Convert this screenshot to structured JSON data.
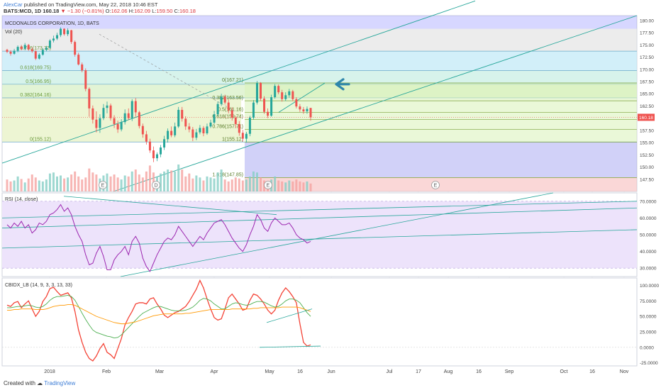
{
  "header": {
    "author": "AlexCar",
    "published_text": "published on TradingView.com, May 22, 2018 10:46 EST",
    "symbol": "BATS:MCD, 1D",
    "last": "160.18",
    "change": "−1.30 (−0.81%)",
    "o_label": "O:",
    "o_val": "162.06",
    "h_label": "H:",
    "h_val": "162.09",
    "l_label": "L:",
    "l_val": "159.50",
    "c_label": "C:",
    "c_val": "160.18"
  },
  "footer": {
    "created_with": "Created with",
    "brand": "TradingView"
  },
  "colors": {
    "up": "#26a69a",
    "down": "#ef5350",
    "rsi": "#9c27b0",
    "cb_red": "#f44336",
    "cb_green": "#4caf50",
    "cb_orange": "#ff9800",
    "trend": "#26a69a",
    "arrow": "#2e86ab"
  },
  "chart_data": [
    {
      "type": "candlestick",
      "title": "MCDONALDS CORPORATION, 1D, BATS",
      "volume_label": "Vol (20)",
      "last_price_label": "160.18",
      "ylim": [
        145,
        181
      ],
      "y_ticks": [
        "180.00",
        "177.50",
        "175.00",
        "172.50",
        "170.00",
        "167.50",
        "165.00",
        "162.50",
        "160.00",
        "157.50",
        "155.00",
        "152.50",
        "150.00",
        "147.50"
      ],
      "fib_top": [
        {
          "label": "0.786(173.72)",
          "level": 173.72
        },
        {
          "label": "0.618(169.75)",
          "level": 169.75
        },
        {
          "label": "0.5(166.95)",
          "level": 166.95
        },
        {
          "label": "0.382(164.16)",
          "level": 164.16
        },
        {
          "label": "0(155.12)",
          "level": 155.12
        }
      ],
      "fib_second": [
        {
          "label": "0(167.21)",
          "level": 167.21
        },
        {
          "label": "0.382(163.56)",
          "level": 163.56
        },
        {
          "label": "0.5(161.16)",
          "level": 161.16
        },
        {
          "label": "0.618(159.74)",
          "level": 159.74
        },
        {
          "label": "0.786(157.71)",
          "level": 157.71
        },
        {
          "label": "1(155.12)",
          "level": 155.12
        },
        {
          "label": "1.618(147.85)",
          "level": 147.85
        }
      ],
      "candles": [
        [
          174.0,
          173.6,
          174.2,
          173.3
        ],
        [
          173.6,
          173.2,
          173.9,
          172.8
        ],
        [
          173.2,
          173.8,
          174.2,
          173.0
        ],
        [
          173.8,
          174.6,
          174.9,
          173.5
        ],
        [
          174.6,
          174.2,
          175.0,
          173.9
        ],
        [
          174.2,
          175.0,
          175.4,
          173.9
        ],
        [
          175.0,
          174.1,
          175.2,
          173.8
        ],
        [
          174.1,
          173.7,
          174.5,
          173.4
        ],
        [
          173.7,
          172.2,
          173.9,
          171.9
        ],
        [
          172.2,
          173.0,
          173.3,
          172.0
        ],
        [
          173.0,
          174.0,
          174.3,
          172.8
        ],
        [
          174.0,
          174.4,
          174.8,
          173.7
        ],
        [
          174.4,
          175.9,
          176.2,
          174.2
        ],
        [
          175.9,
          176.3,
          176.9,
          175.5
        ],
        [
          176.3,
          177.0,
          177.5,
          176.0
        ],
        [
          177.0,
          178.3,
          178.6,
          176.6
        ],
        [
          178.3,
          177.2,
          178.4,
          176.9
        ],
        [
          177.2,
          178.0,
          178.4,
          176.8
        ],
        [
          178.0,
          175.6,
          178.1,
          175.2
        ],
        [
          175.6,
          173.0,
          175.9,
          172.6
        ],
        [
          173.0,
          171.0,
          173.4,
          170.8
        ],
        [
          171.0,
          169.8,
          171.4,
          169.4
        ],
        [
          169.8,
          166.0,
          170.2,
          165.5
        ],
        [
          166.0,
          162.0,
          166.3,
          160.3
        ],
        [
          162.0,
          159.7,
          162.6,
          158.9
        ],
        [
          159.7,
          158.0,
          161.4,
          157.1
        ],
        [
          158.0,
          160.0,
          160.8,
          157.0
        ],
        [
          160.0,
          162.1,
          162.9,
          159.6
        ],
        [
          162.1,
          162.6,
          163.4,
          161.0
        ],
        [
          162.6,
          160.0,
          163.0,
          159.5
        ],
        [
          160.0,
          158.8,
          160.6,
          158.0
        ],
        [
          158.8,
          157.7,
          159.5,
          157.0
        ],
        [
          157.7,
          159.2,
          159.8,
          157.3
        ],
        [
          159.2,
          161.0,
          161.8,
          158.7
        ],
        [
          161.0,
          160.0,
          162.0,
          159.6
        ],
        [
          160.0,
          163.5,
          163.9,
          159.4
        ],
        [
          163.5,
          161.2,
          164.1,
          160.3
        ],
        [
          161.2,
          158.4,
          161.5,
          157.9
        ],
        [
          158.4,
          156.7,
          158.9,
          156.0
        ],
        [
          156.7,
          155.2,
          157.4,
          154.6
        ],
        [
          155.2,
          153.4,
          155.8,
          152.9
        ],
        [
          153.4,
          151.8,
          154.2,
          151.0
        ],
        [
          151.8,
          152.6,
          153.0,
          151.2
        ],
        [
          152.6,
          154.0,
          154.5,
          152.0
        ],
        [
          154.0,
          155.7,
          156.4,
          153.5
        ],
        [
          155.7,
          157.4,
          157.9,
          155.0
        ],
        [
          157.4,
          156.5,
          158.3,
          156.1
        ],
        [
          156.5,
          158.3,
          159.1,
          156.1
        ],
        [
          158.3,
          161.7,
          162.3,
          158.0
        ],
        [
          161.7,
          159.9,
          162.3,
          159.3
        ],
        [
          159.9,
          158.3,
          160.4,
          157.6
        ],
        [
          158.3,
          157.7,
          159.0,
          157.1
        ],
        [
          157.7,
          156.0,
          158.2,
          155.3
        ],
        [
          156.0,
          157.1,
          157.8,
          155.5
        ],
        [
          157.1,
          158.0,
          158.6,
          156.7
        ],
        [
          158.0,
          156.9,
          158.4,
          156.3
        ],
        [
          156.9,
          158.3,
          158.9,
          156.6
        ],
        [
          158.3,
          159.1,
          159.7,
          158.0
        ],
        [
          159.1,
          160.8,
          161.5,
          158.8
        ],
        [
          160.8,
          162.9,
          163.4,
          160.4
        ],
        [
          162.9,
          164.4,
          165.0,
          162.5
        ],
        [
          164.4,
          163.2,
          164.8,
          162.8
        ],
        [
          163.2,
          161.6,
          163.8,
          161.0
        ],
        [
          161.6,
          160.1,
          162.2,
          159.5
        ],
        [
          160.1,
          158.8,
          160.5,
          158.0
        ],
        [
          158.8,
          157.0,
          159.4,
          156.4
        ],
        [
          157.0,
          155.8,
          157.6,
          155.2
        ],
        [
          155.8,
          156.8,
          157.2,
          155.0
        ],
        [
          156.8,
          160.1,
          160.5,
          156.3
        ],
        [
          160.1,
          163.2,
          163.7,
          159.7
        ],
        [
          163.2,
          167.2,
          167.6,
          162.8
        ],
        [
          167.2,
          164.0,
          167.4,
          163.6
        ],
        [
          164.0,
          161.3,
          164.5,
          160.9
        ],
        [
          161.3,
          160.5,
          162.0,
          160.0
        ],
        [
          160.5,
          164.3,
          164.8,
          160.3
        ],
        [
          164.3,
          166.6,
          167.0,
          164.0
        ],
        [
          166.6,
          165.3,
          166.9,
          164.9
        ],
        [
          165.3,
          163.9,
          165.8,
          163.4
        ],
        [
          163.9,
          164.7,
          165.3,
          163.5
        ],
        [
          164.7,
          165.5,
          166.0,
          164.2
        ],
        [
          165.5,
          163.9,
          165.8,
          163.5
        ],
        [
          163.9,
          162.4,
          164.3,
          162.0
        ],
        [
          162.4,
          161.8,
          162.9,
          161.3
        ],
        [
          161.8,
          161.4,
          162.3,
          160.9
        ],
        [
          161.4,
          161.9,
          162.4,
          160.9
        ],
        [
          162.1,
          160.18,
          162.09,
          159.5
        ]
      ],
      "volumes": [
        24,
        20,
        22,
        30,
        25,
        18,
        26,
        34,
        28,
        22,
        20,
        24,
        36,
        38,
        30,
        32,
        26,
        28,
        34,
        40,
        30,
        24,
        28,
        46,
        38,
        34,
        26,
        32,
        36,
        30,
        34,
        28,
        24,
        32,
        30,
        40,
        44,
        34,
        28,
        40,
        52,
        38,
        30,
        36,
        40,
        44,
        42,
        40,
        54,
        44,
        30,
        36,
        26,
        32,
        28,
        22,
        30,
        28,
        26,
        38,
        44,
        24,
        20,
        24,
        28,
        26,
        22,
        24,
        30,
        40,
        38,
        28,
        22,
        18,
        24,
        30,
        22,
        20,
        18,
        22,
        20,
        24,
        20,
        18,
        20,
        16
      ],
      "event_markers": [
        "E",
        "D",
        "E",
        "E"
      ]
    },
    {
      "type": "line",
      "title": "RSI (14, close)",
      "ylim": [
        25,
        75
      ],
      "y_ticks": [
        "70.0000",
        "60.0000",
        "50.0000",
        "40.0000",
        "30.0000"
      ],
      "series": [
        {
          "values": [
            56,
            54,
            57,
            55,
            58,
            54,
            56,
            51,
            53,
            57,
            56,
            58,
            62,
            63,
            65,
            68,
            64,
            66,
            62,
            55,
            50,
            46,
            38,
            32,
            33,
            39,
            43,
            37,
            29,
            29,
            35,
            38,
            40,
            43,
            38,
            46,
            49,
            45,
            36,
            31,
            28,
            33,
            38,
            42,
            46,
            48,
            47,
            50,
            55,
            52,
            49,
            46,
            43,
            46,
            49,
            47,
            51,
            54,
            57,
            58,
            59,
            56,
            52,
            48,
            45,
            42,
            40,
            44,
            50,
            55,
            62,
            59,
            54,
            52,
            57,
            60,
            58,
            56,
            56,
            57,
            54,
            50,
            48,
            47,
            45,
            46
          ]
        }
      ]
    },
    {
      "type": "line",
      "title": "CBIDX_LB (14, 9, 3, 3, 13, 33)",
      "ylim": [
        -30,
        112
      ],
      "y_ticks": [
        "100.0000",
        "75.0000",
        "50.0000",
        "25.0000",
        "0.0000",
        "-25.0000"
      ],
      "series": [
        {
          "values": [
            68,
            66,
            72,
            74,
            64,
            70,
            75,
            62,
            50,
            58,
            74,
            82,
            95,
            97,
            90,
            84,
            86,
            88,
            80,
            58,
            28,
            8,
            -8,
            -18,
            -22,
            -14,
            -2,
            6,
            -8,
            -12,
            -18,
            -2,
            14,
            36,
            48,
            58,
            70,
            72,
            72,
            70,
            78,
            80,
            70,
            62,
            52,
            48,
            52,
            56,
            58,
            62,
            66,
            74,
            84,
            94,
            108,
            96,
            78,
            62,
            48,
            44,
            46,
            62,
            80,
            86,
            78,
            70,
            60,
            62,
            76,
            86,
            84,
            78,
            70,
            60,
            54,
            60,
            76,
            88,
            96,
            90,
            82,
            72,
            38,
            8,
            2,
            4
          ]
        },
        {
          "values": [
            64,
            64,
            65,
            66,
            66,
            67,
            68,
            67,
            65,
            64,
            66,
            70,
            76,
            80,
            82,
            82,
            83,
            84,
            82,
            76,
            66,
            55,
            45,
            36,
            28,
            24,
            22,
            20,
            18,
            17,
            15,
            16,
            20,
            26,
            32,
            38,
            44,
            50,
            55,
            58,
            61,
            64,
            66,
            66,
            64,
            62,
            60,
            59,
            59,
            59,
            60,
            62,
            65,
            70,
            76,
            79,
            78,
            75,
            70,
            66,
            62,
            62,
            66,
            70,
            72,
            71,
            69,
            68,
            69,
            72,
            74,
            74,
            73,
            70,
            67,
            65,
            66,
            70,
            75,
            78,
            78,
            76,
            72,
            64,
            56,
            50
          ]
        },
        {
          "values": [
            60,
            60,
            61,
            61,
            62,
            62,
            62,
            62,
            61,
            61,
            61,
            62,
            64,
            66,
            67,
            68,
            68,
            69,
            69,
            68,
            65,
            62,
            59,
            56,
            53,
            50,
            48,
            46,
            44,
            42,
            40,
            39,
            38,
            38,
            39,
            40,
            41,
            43,
            45,
            47,
            49,
            51,
            52,
            53,
            54,
            54,
            54,
            54,
            54,
            54,
            55,
            55,
            56,
            57,
            58,
            59,
            60,
            61,
            61,
            61,
            61,
            61,
            61,
            62,
            62,
            62,
            62,
            62,
            62,
            63,
            63,
            64,
            64,
            64,
            64,
            64,
            64,
            65,
            65,
            65,
            65,
            65,
            64,
            62,
            60,
            58
          ]
        }
      ]
    }
  ],
  "x_axis": {
    "labels": [
      "2018",
      "Feb",
      "Mar",
      "Apr",
      "May",
      "16",
      "Jun",
      "Jul",
      "17",
      "Aug",
      "16",
      "Sep",
      "Oct",
      "16",
      "Nov"
    ]
  }
}
